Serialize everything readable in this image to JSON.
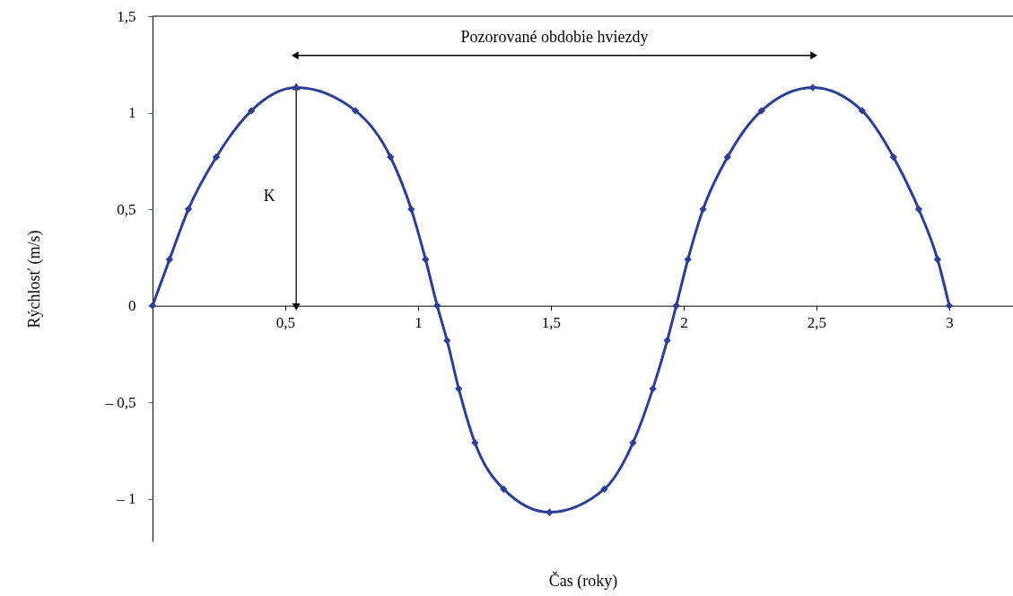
{
  "chart_data": {
    "type": "line",
    "xlabel": "Čas (roky)",
    "ylabel": "Rýchlosť (m/s)",
    "x": [
      0,
      0.064,
      0.135,
      0.24,
      0.372,
      0.541,
      0.764,
      0.896,
      0.974,
      1.028,
      1.072,
      1.109,
      1.153,
      1.214,
      1.322,
      1.495,
      1.701,
      1.809,
      1.884,
      1.938,
      1.972,
      2.016,
      2.073,
      2.165,
      2.293,
      2.486,
      2.672,
      2.79,
      2.885,
      2.956,
      3.0
    ],
    "series": [
      {
        "color": "#2b3f94",
        "values": [
          0,
          0.24,
          0.5,
          0.77,
          1.01,
          1.13,
          1.01,
          0.77,
          0.5,
          0.24,
          0,
          -0.18,
          -0.43,
          -0.71,
          -0.95,
          -1.07,
          -0.95,
          -0.71,
          -0.43,
          -0.18,
          0,
          0.24,
          0.5,
          0.77,
          1.01,
          1.13,
          1.01,
          0.77,
          0.5,
          0.24,
          0
        ]
      }
    ],
    "xlim": [
      0,
      3.24
    ],
    "ylim": [
      -1.22,
      1.5
    ],
    "xticks": [
      {
        "value": 0.5,
        "label": "0,5"
      },
      1,
      {
        "value": 1.5,
        "label": "1,5"
      },
      2,
      {
        "value": 2.5,
        "label": "2,5"
      },
      3
    ],
    "yticks": [
      {
        "value": -1,
        "label": "– 1"
      },
      {
        "value": -0.5,
        "label": "– 0,5"
      },
      0,
      {
        "value": 0.5,
        "label": "0,5"
      },
      1,
      {
        "value": 1.5,
        "label": "1,5"
      }
    ],
    "annotations": [
      "Pozorované obdobie hviezdy",
      "K"
    ],
    "marker": "diamond",
    "line_style": "solid",
    "grid": false
  }
}
